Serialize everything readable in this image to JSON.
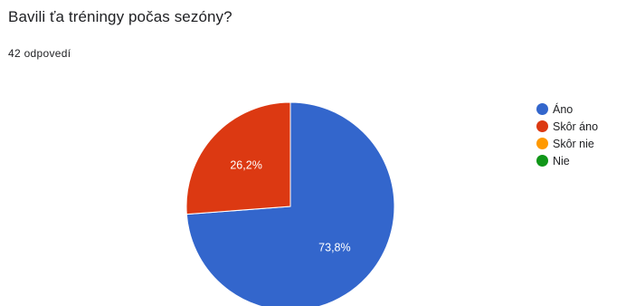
{
  "question": {
    "title": "Bavili ťa tréningy počas sezóny?",
    "response_count": "42 odpovedí"
  },
  "chart_data": {
    "type": "pie",
    "title": "Bavili ťa tréningy počas sezóny?",
    "slices": [
      {
        "label": "Áno",
        "value": 73.8,
        "display": "73,8%",
        "color": "#3366cc"
      },
      {
        "label": "Skôr áno",
        "value": 26.2,
        "display": "26,2%",
        "color": "#dc3912"
      },
      {
        "label": "Skôr nie",
        "value": 0,
        "display": "",
        "color": "#ff9900"
      },
      {
        "label": "Nie",
        "value": 0,
        "display": "",
        "color": "#109618"
      }
    ],
    "legend_position": "right"
  }
}
